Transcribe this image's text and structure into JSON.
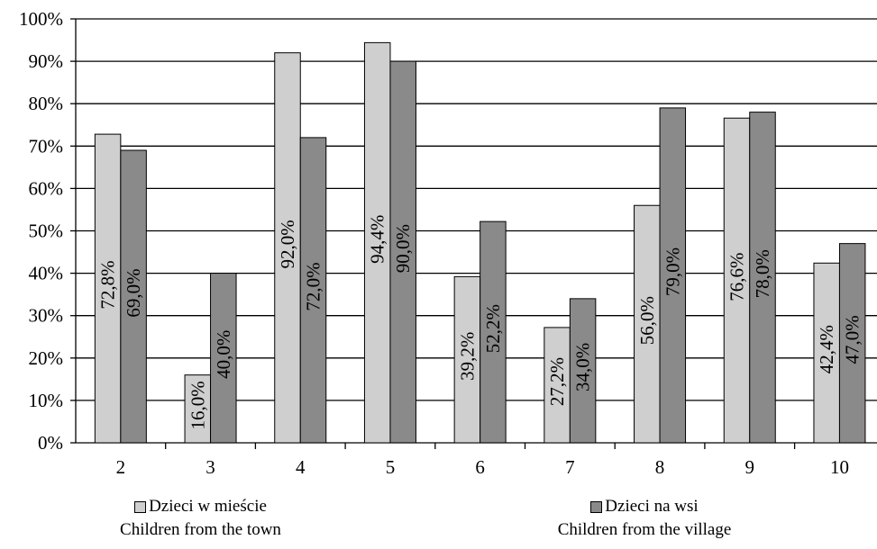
{
  "chart_data": {
    "type": "bar",
    "categories": [
      "2",
      "3",
      "4",
      "5",
      "6",
      "7",
      "8",
      "9",
      "10"
    ],
    "series": [
      {
        "name": "Dzieci w mieście",
        "name_en": "Children from the town",
        "color": "#cfcfcf",
        "values": [
          72.8,
          16.0,
          92.0,
          94.4,
          39.2,
          27.2,
          56.0,
          76.6,
          42.4
        ],
        "labels": [
          "72,8%",
          "16,0%",
          "92,0%",
          "94,4%",
          "39,2%",
          "27,2%",
          "56,0%",
          "76,6%",
          "42,4%"
        ]
      },
      {
        "name": "Dzieci na wsi",
        "name_en": "Children from the village",
        "color": "#8a8a8a",
        "values": [
          69.0,
          40.0,
          72.0,
          90.0,
          52.2,
          34.0,
          79.0,
          78.0,
          47.0
        ],
        "labels": [
          "69,0%",
          "40,0%",
          "72,0%",
          "90,0%",
          "52,2%",
          "34,0%",
          "79,0%",
          "78,0%",
          "47,0%"
        ]
      }
    ],
    "ylim": [
      0,
      100
    ],
    "yticks": [
      "0%",
      "10%",
      "20%",
      "30%",
      "40%",
      "50%",
      "60%",
      "70%",
      "80%",
      "90%",
      "100%"
    ],
    "grid": true,
    "legend_position": "bottom",
    "title": "",
    "xlabel": "",
    "ylabel": ""
  }
}
